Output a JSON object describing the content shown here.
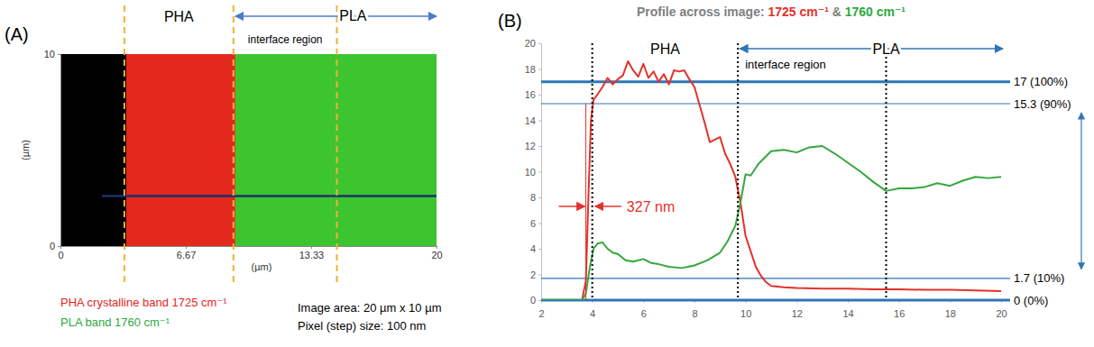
{
  "chart_data": [
    {
      "type": "image",
      "panel": "(A)",
      "xlim": [
        0,
        20
      ],
      "xticks": [
        0,
        6.67,
        13.33,
        20
      ],
      "ylim": [
        0,
        10
      ],
      "yticks": [
        0,
        10
      ],
      "xlabel": "(µm)",
      "ylabel": "(µm)",
      "regions": [
        {
          "x0": 0,
          "x1": 3.5,
          "color": "#000000"
        },
        {
          "x0": 3.5,
          "x1": 9.3,
          "color": "#e3281d"
        },
        {
          "x0": 9.3,
          "x1": 20,
          "color": "#3cc52e"
        }
      ],
      "vlines": {
        "values": [
          3.4,
          9.2,
          14.7
        ],
        "color": "#f2b134",
        "line_style": "dashed"
      },
      "labels": {
        "left": "PHA",
        "right": "PLA",
        "interface": "interface region"
      },
      "profile": {
        "x": [
          2.2,
          20
        ],
        "y": 2.6,
        "color": "#1b2f6b"
      },
      "legend_items": [
        {
          "label": "PHA crystalline band 1725 cm⁻¹",
          "color": "#e3281d"
        },
        {
          "label": "PLA band 1760 cm⁻¹",
          "color": "#2ea83a"
        }
      ],
      "notes": [
        "Image area: 20 µm x 10 µm",
        "Pixel (step) size: 100 nm"
      ]
    },
    {
      "type": "line",
      "panel": "(B)",
      "title": [
        {
          "text": "Profile across image: ",
          "color": "#7f7f7f"
        },
        {
          "text": "1725 cm⁻¹",
          "color": "#e3312b"
        },
        {
          "text": " & ",
          "color": "#7f7f7f"
        },
        {
          "text": "1760 cm⁻¹",
          "color": "#2ea83a"
        }
      ],
      "xlim": [
        2,
        20
      ],
      "xticks": [
        2,
        4,
        6,
        8,
        10,
        12,
        14,
        16,
        18,
        20
      ],
      "ylim": [
        0,
        20
      ],
      "yticks": [
        0,
        2,
        4,
        6,
        8,
        10,
        12,
        14,
        16,
        18,
        20
      ],
      "series": [
        {
          "color": "#e3312b",
          "x": [
            2,
            3,
            3.6,
            3.75,
            3.85,
            3.95,
            4.05,
            4.2,
            4.4,
            4.6,
            4.8,
            5.0,
            5.2,
            5.4,
            5.6,
            5.8,
            6.0,
            6.2,
            6.4,
            6.6,
            6.8,
            7.0,
            7.2,
            7.4,
            7.6,
            7.8,
            8.0,
            8.2,
            8.4,
            8.6,
            8.8,
            9.0,
            9.2,
            9.4,
            9.6,
            9.8,
            10.0,
            10.2,
            10.4,
            10.6,
            10.8,
            11.0,
            11.5,
            12,
            13,
            14,
            15,
            16,
            17,
            18,
            19,
            20
          ],
          "values": [
            0,
            0,
            0,
            1.5,
            8,
            14,
            15.6,
            16,
            16.6,
            17.3,
            16.8,
            17.2,
            17.5,
            18.6,
            17.9,
            17.4,
            18.4,
            17.3,
            17.8,
            17.0,
            17.6,
            16.8,
            17.9,
            17.8,
            17.9,
            17.2,
            16.6,
            15.2,
            13.8,
            12.3,
            12.5,
            12.7,
            11.4,
            10.6,
            9.6,
            7.6,
            5.0,
            3.8,
            2.6,
            1.9,
            1.4,
            1.1,
            1.0,
            0.95,
            0.9,
            0.9,
            0.85,
            0.85,
            0.8,
            0.8,
            0.75,
            0.7
          ]
        },
        {
          "color": "#35a73d",
          "x": [
            2,
            3,
            3.6,
            3.75,
            3.9,
            4.05,
            4.2,
            4.4,
            4.6,
            4.8,
            5.0,
            5.3,
            5.6,
            6.0,
            6.3,
            6.6,
            7.0,
            7.5,
            8.0,
            8.5,
            9.0,
            9.3,
            9.6,
            9.8,
            10.0,
            10.2,
            10.5,
            11.0,
            11.5,
            12.0,
            12.5,
            13.0,
            13.5,
            14.0,
            14.5,
            15.0,
            15.5,
            16.0,
            16.5,
            17.0,
            17.5,
            18.0,
            18.5,
            19.0,
            19.5,
            20
          ],
          "values": [
            0,
            0,
            0,
            0.5,
            2.5,
            4.0,
            4.4,
            4.5,
            4.0,
            3.7,
            3.6,
            3.1,
            3.0,
            3.2,
            2.9,
            2.8,
            2.6,
            2.5,
            2.7,
            3.1,
            3.7,
            4.6,
            5.8,
            7.6,
            9.8,
            9.7,
            10.6,
            11.6,
            11.7,
            11.5,
            11.9,
            12.0,
            11.4,
            10.7,
            10.0,
            9.2,
            8.5,
            8.7,
            8.7,
            8.8,
            9.1,
            8.9,
            9.3,
            9.6,
            9.5,
            9.6
          ]
        }
      ],
      "hlines": {
        "color": "#2e75b6",
        "lines": [
          {
            "value": 17,
            "label": "17 (100%)"
          },
          {
            "value": 15.3,
            "label": "15.3 (90%)"
          },
          {
            "value": 1.7,
            "label": "1.7 (10%)"
          },
          {
            "value": 0,
            "label": "0 (0%)"
          }
        ]
      },
      "vlines": {
        "values": [
          4,
          9.7,
          15.5
        ],
        "color": "#000000",
        "line_style": "dotted"
      },
      "labels": {
        "left": "PHA",
        "right": "PLA",
        "interface": "interface region"
      },
      "measure": {
        "x0": 3.75,
        "x1": 4.077,
        "label": "327 nm",
        "color": "#e3312b"
      }
    }
  ]
}
